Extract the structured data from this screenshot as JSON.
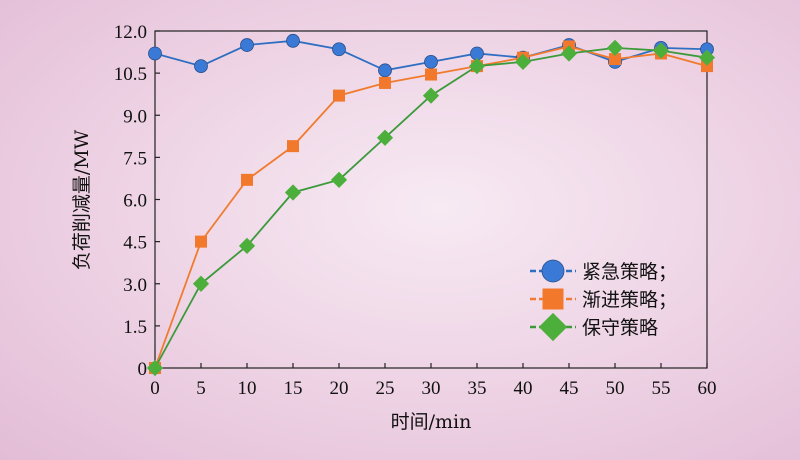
{
  "chart_data": {
    "type": "line",
    "xlabel": "时间/min",
    "ylabel": "负荷削减量/MW",
    "xlim": [
      0,
      60
    ],
    "ylim": [
      0,
      12
    ],
    "xticks": [
      "0",
      "5",
      "10",
      "15",
      "20",
      "25",
      "30",
      "35",
      "40",
      "45",
      "50",
      "55",
      "60"
    ],
    "yticks": [
      "0",
      "1.5",
      "3.0",
      "4.5",
      "6.0",
      "7.5",
      "9.0",
      "10.5",
      "12.0"
    ],
    "x": [
      0,
      5,
      10,
      15,
      20,
      25,
      30,
      35,
      40,
      45,
      50,
      55,
      60
    ],
    "grid": false,
    "legend_position": "right",
    "series": [
      {
        "name": "紧急策略；",
        "marker": "circle",
        "color": "#2f6fc2",
        "marker_color": "#3a7ad6",
        "values": [
          11.2,
          10.75,
          11.5,
          11.65,
          11.35,
          10.6,
          10.9,
          11.2,
          11.05,
          11.5,
          10.9,
          11.4,
          11.35
        ]
      },
      {
        "name": "渐进策略；",
        "marker": "square",
        "color": "#f07b2e",
        "marker_color": "#f2782c",
        "values": [
          0,
          4.5,
          6.7,
          7.9,
          9.7,
          10.15,
          10.45,
          10.75,
          11.05,
          11.45,
          11.0,
          11.2,
          10.75
        ]
      },
      {
        "name": "保守策略",
        "marker": "diamond",
        "color": "#3c9a3c",
        "marker_color": "#4caf3c",
        "values": [
          0,
          3.0,
          4.35,
          6.25,
          6.7,
          8.2,
          9.7,
          10.75,
          10.9,
          11.2,
          11.4,
          11.3,
          11.05
        ]
      }
    ]
  }
}
